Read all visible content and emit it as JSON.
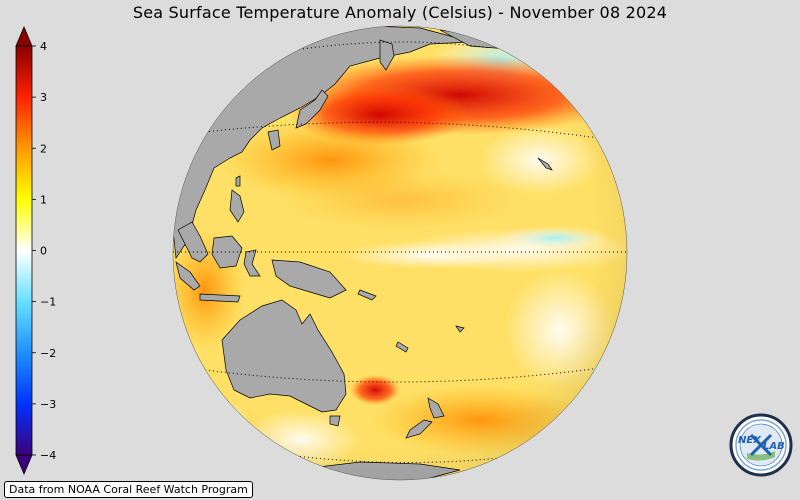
{
  "title": "Sea Surface Temperature Anomaly (Celsius) - November 08 2024",
  "colorbar": {
    "min": -4,
    "max": 4,
    "ticks": [
      {
        "value": 4,
        "label": "4"
      },
      {
        "value": 3,
        "label": "3"
      },
      {
        "value": 2,
        "label": "2"
      },
      {
        "value": 1,
        "label": "1"
      },
      {
        "value": 0,
        "label": "0"
      },
      {
        "value": -1,
        "label": "−1"
      },
      {
        "value": -2,
        "label": "−2"
      },
      {
        "value": -3,
        "label": "−3"
      },
      {
        "value": -4,
        "label": "−4"
      }
    ],
    "colors": {
      "minus4": "#3b007a",
      "minus3": "#0033ff",
      "minus2": "#1e90ff",
      "minus1": "#66e0ff",
      "zero": "#ffffff",
      "plus1": "#ffff00",
      "plus2": "#ff9900",
      "plus3": "#ff2200",
      "plus4": "#8b0000"
    }
  },
  "map": {
    "land_color": "#a9a9a9",
    "ocean_base_color": "#ffe066"
  },
  "credit": "Data from NOAA Coral Reef Watch Program",
  "logo": {
    "text_left": "NEX",
    "text_right": "LAB"
  }
}
